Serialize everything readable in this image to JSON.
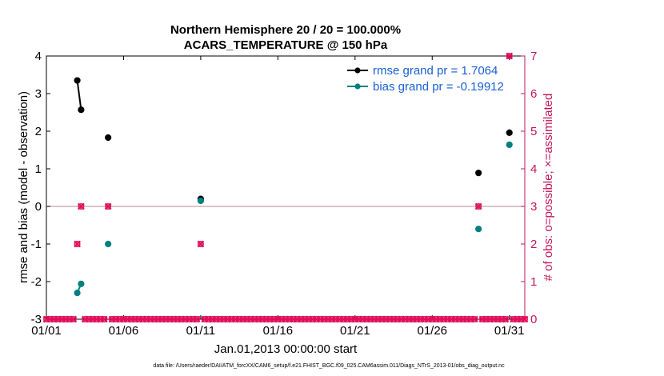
{
  "chart_data": {
    "type": "scatter",
    "title_line1": "Northern Hemisphere 20 / 20 = 100.000%",
    "title_line2": "ACARS_TEMPERATURE @ 150 hPa",
    "xlabel": "Jan.01,2013 00:00:00 start",
    "ylabel_left": "rmse and bias (model - observation)",
    "ylabel_right": "# of obs: o=possible; ×=assimilated",
    "footer": "data file: /Users/raeder/DAI/ATM_forcXX/CAM6_setup/f.e21.FHIST_BGC.f09_025.CAM6assim.011/Diags_NTrS_2013-01/obs_diag_output.nc",
    "xlim": [
      1,
      32
    ],
    "ylim_left": [
      -3,
      4
    ],
    "ylim_right": [
      0,
      7
    ],
    "x_ticks": [
      {
        "value": 1,
        "label": "01/01"
      },
      {
        "value": 6,
        "label": "01/06"
      },
      {
        "value": 11,
        "label": "01/11"
      },
      {
        "value": 16,
        "label": "01/16"
      },
      {
        "value": 21,
        "label": "01/21"
      },
      {
        "value": 26,
        "label": "01/26"
      },
      {
        "value": 31,
        "label": "01/31"
      }
    ],
    "y_ticks_left": [
      {
        "value": 4,
        "label": "4"
      },
      {
        "value": 3,
        "label": "3"
      },
      {
        "value": 2,
        "label": "2"
      },
      {
        "value": 1,
        "label": "1"
      },
      {
        "value": 0,
        "label": "0"
      },
      {
        "value": -1,
        "label": "-1"
      },
      {
        "value": -2,
        "label": "-2"
      },
      {
        "value": -3,
        "label": "-3"
      }
    ],
    "y_ticks_right": [
      {
        "value": 7,
        "label": "7"
      },
      {
        "value": 6,
        "label": "6"
      },
      {
        "value": 5,
        "label": "5"
      },
      {
        "value": 4,
        "label": "4"
      },
      {
        "value": 3,
        "label": "3"
      },
      {
        "value": 2,
        "label": "2"
      },
      {
        "value": 1,
        "label": "1"
      },
      {
        "value": 0,
        "label": "0"
      }
    ],
    "colors": {
      "rmse": "#000000",
      "bias": "#008080",
      "obs": "#e0105a",
      "legend_text": "#1a5fd6",
      "right_axis": "#c2185b",
      "zero_line": "#c9a0a8"
    },
    "series": [
      {
        "name": "rmse grand pr = 1.7064",
        "key": "rmse",
        "points": [
          [
            3.0,
            3.35
          ],
          [
            3.25,
            2.57
          ],
          [
            5.0,
            1.83
          ],
          [
            11.0,
            0.2
          ],
          [
            29.0,
            0.89
          ],
          [
            31.0,
            1.96
          ]
        ],
        "segments": [
          [
            0,
            1
          ]
        ]
      },
      {
        "name": "bias grand pr = -0.19912",
        "key": "bias",
        "points": [
          [
            3.0,
            -2.3
          ],
          [
            3.25,
            -2.06
          ],
          [
            5.0,
            -1.0
          ],
          [
            11.0,
            0.15
          ],
          [
            29.0,
            -0.6
          ],
          [
            31.0,
            1.64
          ]
        ],
        "segments": [
          [
            0,
            1
          ]
        ]
      }
    ],
    "obs_possible_nonzero": [
      [
        3.0,
        2
      ],
      [
        3.25,
        3
      ],
      [
        5.0,
        3
      ],
      [
        11.0,
        2
      ],
      [
        29.0,
        3
      ],
      [
        31.0,
        7
      ]
    ],
    "obs_assimilated_nonzero": [
      [
        3.0,
        2
      ],
      [
        3.25,
        3
      ],
      [
        5.0,
        3
      ],
      [
        11.0,
        2
      ],
      [
        29.0,
        3
      ],
      [
        31.0,
        7
      ]
    ],
    "obs_zero_step": 0.25
  }
}
